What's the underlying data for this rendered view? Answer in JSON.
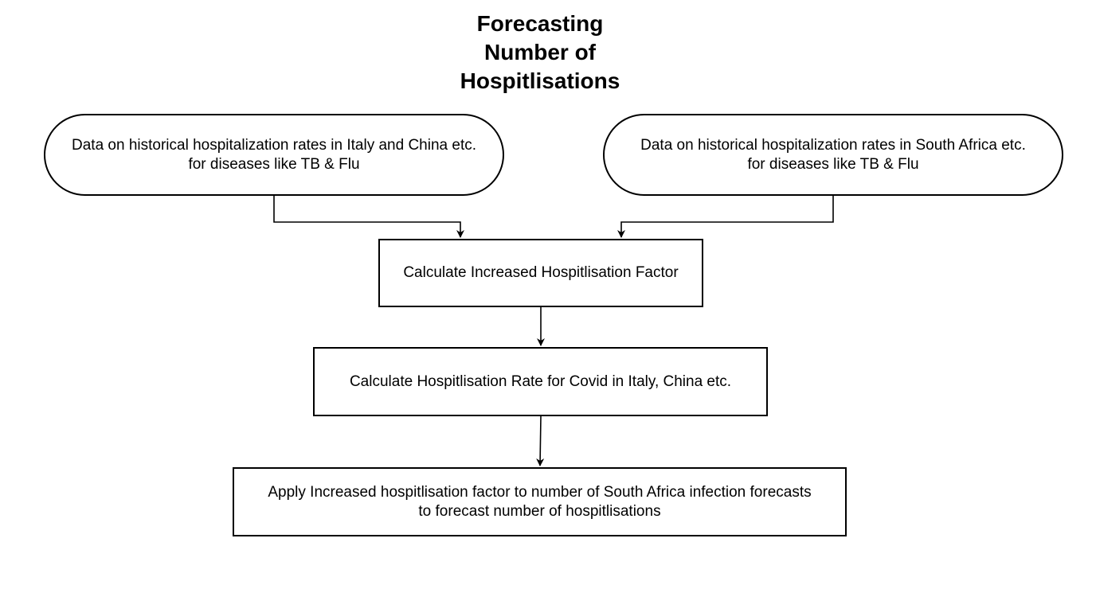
{
  "title": {
    "line1": "Forecasting",
    "line2": "Number of",
    "line3": "Hospitlisations"
  },
  "nodes": {
    "source_italy_china": {
      "line1": "Data on historical hospitalization rates in Italy and China etc.",
      "line2": "for diseases like TB & Flu"
    },
    "source_south_africa": {
      "line1": "Data on historical hospitalization rates in South Africa etc.",
      "line2": "for diseases like TB & Flu"
    },
    "step_factor": {
      "line1": "Calculate Increased Hospitlisation Factor"
    },
    "step_rate": {
      "line1": "Calculate Hospitlisation Rate for Covid in Italy, China etc."
    },
    "step_apply": {
      "line1": "Apply Increased hospitlisation factor to number of South Africa infection forecasts",
      "line2": "to forecast number of hospitlisations"
    }
  },
  "colors": {
    "stroke": "#000000",
    "background": "#ffffff"
  }
}
